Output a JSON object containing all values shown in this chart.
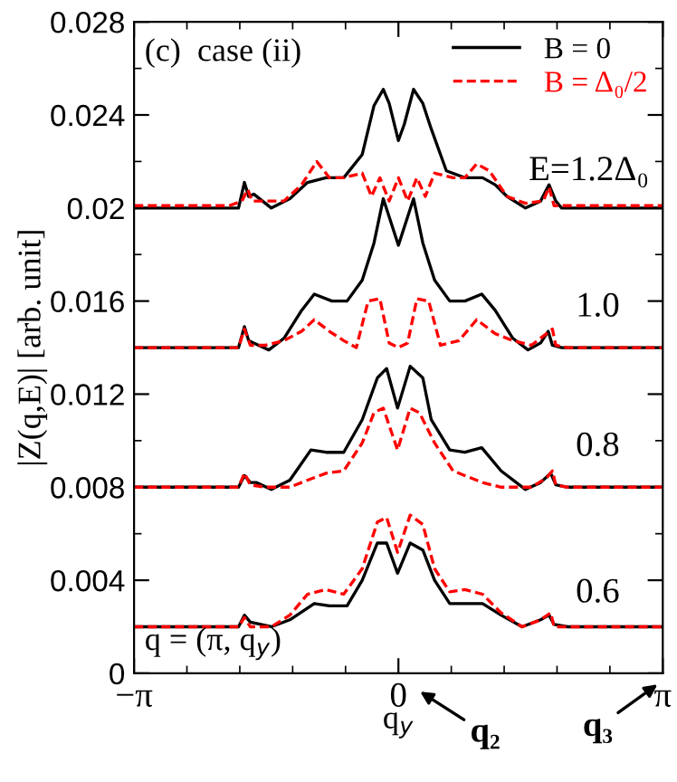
{
  "chart_data": {
    "type": "line",
    "xlabel": "q$_{y}$",
    "ylabel": "|Z(q,E)| [arb. unit]",
    "xlim": [
      -3.1416,
      3.1416
    ],
    "xticks": [
      {
        "value": -3.1416,
        "label": "−π"
      },
      0,
      {
        "value": 3.1416,
        "label": "π"
      }
    ],
    "ylim": [
      0,
      0.028
    ],
    "yticks": [
      0,
      0.004,
      0.008,
      0.012,
      0.016,
      0.02,
      0.024,
      0.028
    ],
    "grid": false,
    "legend": "top right",
    "annotations": [
      "(c)  case (ii)",
      "q = (π, q$_{y}$)",
      "E=1.2Δ₀",
      "1.0",
      "0.8",
      "0.6",
      "q₂",
      "q₃"
    ],
    "series": [
      {
        "name": "B = 0",
        "color": "#000000",
        "line_style": "solid",
        "x": [
          -3.14,
          -1.9,
          -1.83,
          -1.78,
          -1.72,
          -1.51,
          -1.29,
          -1.08,
          -0.86,
          -0.65,
          -0.43,
          -0.29,
          -0.18,
          -0.11,
          0,
          0.07,
          0.18,
          0.29,
          0.39,
          0.57,
          0.79,
          1.0,
          1.15,
          1.29,
          1.51,
          1.69,
          1.79,
          1.87,
          1.94,
          3.14
        ],
        "values": [
          0.02,
          0.02,
          0.0211,
          0.0205,
          0.0206,
          0.02,
          0.0204,
          0.0211,
          0.0213,
          0.0213,
          0.0223,
          0.0244,
          0.0251,
          0.0245,
          0.0229,
          0.0236,
          0.0251,
          0.0245,
          0.0234,
          0.0216,
          0.0213,
          0.0213,
          0.021,
          0.0205,
          0.02,
          0.0203,
          0.021,
          0.0203,
          0.02,
          0.02
        ]
      },
      {
        "name": "B = Δ₀/2",
        "color": "#ff0000",
        "line_style": "dashed",
        "x": [
          -3.14,
          -2.01,
          -1.86,
          -1.79,
          -1.74,
          -1.58,
          -1.36,
          -1.15,
          -0.97,
          -0.82,
          -0.65,
          -0.43,
          -0.32,
          -0.22,
          -0.11,
          0,
          0.11,
          0.22,
          0.32,
          0.43,
          0.65,
          0.79,
          0.93,
          1.08,
          1.29,
          1.51,
          1.72,
          1.79,
          1.85,
          2.01,
          3.14
        ],
        "values": [
          0.0201,
          0.0201,
          0.0203,
          0.0208,
          0.0203,
          0.0203,
          0.0203,
          0.021,
          0.022,
          0.0213,
          0.0213,
          0.0215,
          0.0205,
          0.0213,
          0.0203,
          0.0213,
          0.0203,
          0.0213,
          0.0205,
          0.0215,
          0.0213,
          0.0213,
          0.0219,
          0.0216,
          0.0205,
          0.0202,
          0.0203,
          0.0209,
          0.0201,
          0.0201,
          0.0201
        ]
      },
      {
        "color": "#000000",
        "line_style": "solid",
        "x": [
          -3.14,
          -1.9,
          -1.83,
          -1.78,
          -1.72,
          -1.54,
          -1.36,
          -1.15,
          -1.0,
          -0.79,
          -0.61,
          -0.43,
          -0.29,
          -0.18,
          0,
          0.18,
          0.29,
          0.43,
          0.61,
          0.79,
          0.99,
          1.15,
          1.36,
          1.54,
          1.69,
          1.78,
          1.83,
          1.94,
          3.14
        ],
        "values": [
          0.014,
          0.014,
          0.0149,
          0.0143,
          0.0142,
          0.0139,
          0.0144,
          0.0156,
          0.0163,
          0.016,
          0.016,
          0.0169,
          0.0185,
          0.0204,
          0.0184,
          0.0204,
          0.0185,
          0.0169,
          0.016,
          0.016,
          0.0163,
          0.0156,
          0.0144,
          0.0139,
          0.0142,
          0.0147,
          0.0141,
          0.014,
          0.014
        ]
      },
      {
        "color": "#ff0000",
        "line_style": "dashed",
        "x": [
          -3.14,
          -1.9,
          -1.83,
          -1.76,
          -1.58,
          -1.36,
          -1.15,
          -1.0,
          -0.82,
          -0.65,
          -0.5,
          -0.36,
          -0.22,
          -0.11,
          0,
          0.11,
          0.22,
          0.36,
          0.5,
          0.72,
          0.93,
          1.15,
          1.36,
          1.58,
          1.76,
          1.83,
          1.87,
          2.01,
          3.14
        ],
        "values": [
          0.014,
          0.014,
          0.0148,
          0.0141,
          0.0141,
          0.0143,
          0.0147,
          0.0152,
          0.0147,
          0.0143,
          0.014,
          0.016,
          0.0161,
          0.0142,
          0.014,
          0.0142,
          0.0161,
          0.016,
          0.0141,
          0.0143,
          0.0152,
          0.0146,
          0.0143,
          0.0141,
          0.0146,
          0.0148,
          0.0141,
          0.014,
          0.014
        ]
      },
      {
        "color": "#000000",
        "line_style": "solid",
        "x": [
          -3.14,
          -1.9,
          -1.83,
          -1.76,
          -1.69,
          -1.51,
          -1.29,
          -1.04,
          -0.86,
          -0.65,
          -0.43,
          -0.25,
          -0.14,
          -0.01,
          0.14,
          0.29,
          0.39,
          0.61,
          0.79,
          0.99,
          1.22,
          1.51,
          1.69,
          1.81,
          1.87,
          2.01,
          3.14
        ],
        "values": [
          0.008,
          0.008,
          0.0085,
          0.0082,
          0.0082,
          0.0079,
          0.0083,
          0.0096,
          0.0095,
          0.0095,
          0.0109,
          0.0127,
          0.0131,
          0.0114,
          0.0132,
          0.0127,
          0.0109,
          0.0096,
          0.0095,
          0.0097,
          0.0087,
          0.0079,
          0.0082,
          0.0086,
          0.0081,
          0.008,
          0.008
        ]
      },
      {
        "color": "#ff0000",
        "line_style": "dashed",
        "x": [
          -3.14,
          -1.9,
          -1.83,
          -1.76,
          -1.58,
          -1.29,
          -1.08,
          -0.86,
          -0.65,
          -0.43,
          -0.29,
          -0.18,
          -0.01,
          0.14,
          0.25,
          0.43,
          0.65,
          0.86,
          1.0,
          1.22,
          1.58,
          1.76,
          1.83,
          1.87,
          2.01,
          3.14
        ],
        "values": [
          0.008,
          0.008,
          0.0086,
          0.0081,
          0.008,
          0.008,
          0.0083,
          0.0086,
          0.0087,
          0.0099,
          0.0112,
          0.0114,
          0.0096,
          0.0114,
          0.0112,
          0.0099,
          0.0087,
          0.0084,
          0.0082,
          0.008,
          0.008,
          0.0084,
          0.0087,
          0.0081,
          0.008,
          0.008
        ]
      },
      {
        "color": "#000000",
        "line_style": "solid",
        "x": [
          -3.14,
          -1.9,
          -1.83,
          -1.76,
          -1.51,
          -1.29,
          -1.0,
          -0.82,
          -0.61,
          -0.43,
          -0.25,
          -0.14,
          -0.01,
          0.14,
          0.29,
          0.43,
          0.61,
          0.79,
          1.0,
          1.22,
          1.47,
          1.69,
          1.79,
          1.85,
          2.01,
          3.14
        ],
        "values": [
          0.002,
          0.002,
          0.0025,
          0.0022,
          0.002,
          0.0023,
          0.003,
          0.0029,
          0.0029,
          0.004,
          0.0056,
          0.0056,
          0.0043,
          0.0056,
          0.0053,
          0.004,
          0.003,
          0.003,
          0.003,
          0.0025,
          0.002,
          0.0023,
          0.0025,
          0.0021,
          0.002,
          0.002
        ]
      },
      {
        "color": "#ff0000",
        "line_style": "dashed",
        "x": [
          -3.14,
          -1.9,
          -1.83,
          -1.76,
          -1.51,
          -1.29,
          -1.08,
          -0.86,
          -0.65,
          -0.43,
          -0.25,
          -0.14,
          -0.01,
          0.14,
          0.29,
          0.43,
          0.61,
          0.79,
          1.0,
          1.22,
          1.47,
          1.69,
          1.81,
          1.85,
          2.01,
          3.14
        ],
        "values": [
          0.002,
          0.002,
          0.0024,
          0.002,
          0.002,
          0.0025,
          0.0034,
          0.0036,
          0.0034,
          0.0045,
          0.0065,
          0.0067,
          0.0052,
          0.0068,
          0.0064,
          0.0045,
          0.0035,
          0.0036,
          0.0034,
          0.0026,
          0.002,
          0.0023,
          0.0026,
          0.002,
          0.002,
          0.002
        ]
      }
    ]
  }
}
